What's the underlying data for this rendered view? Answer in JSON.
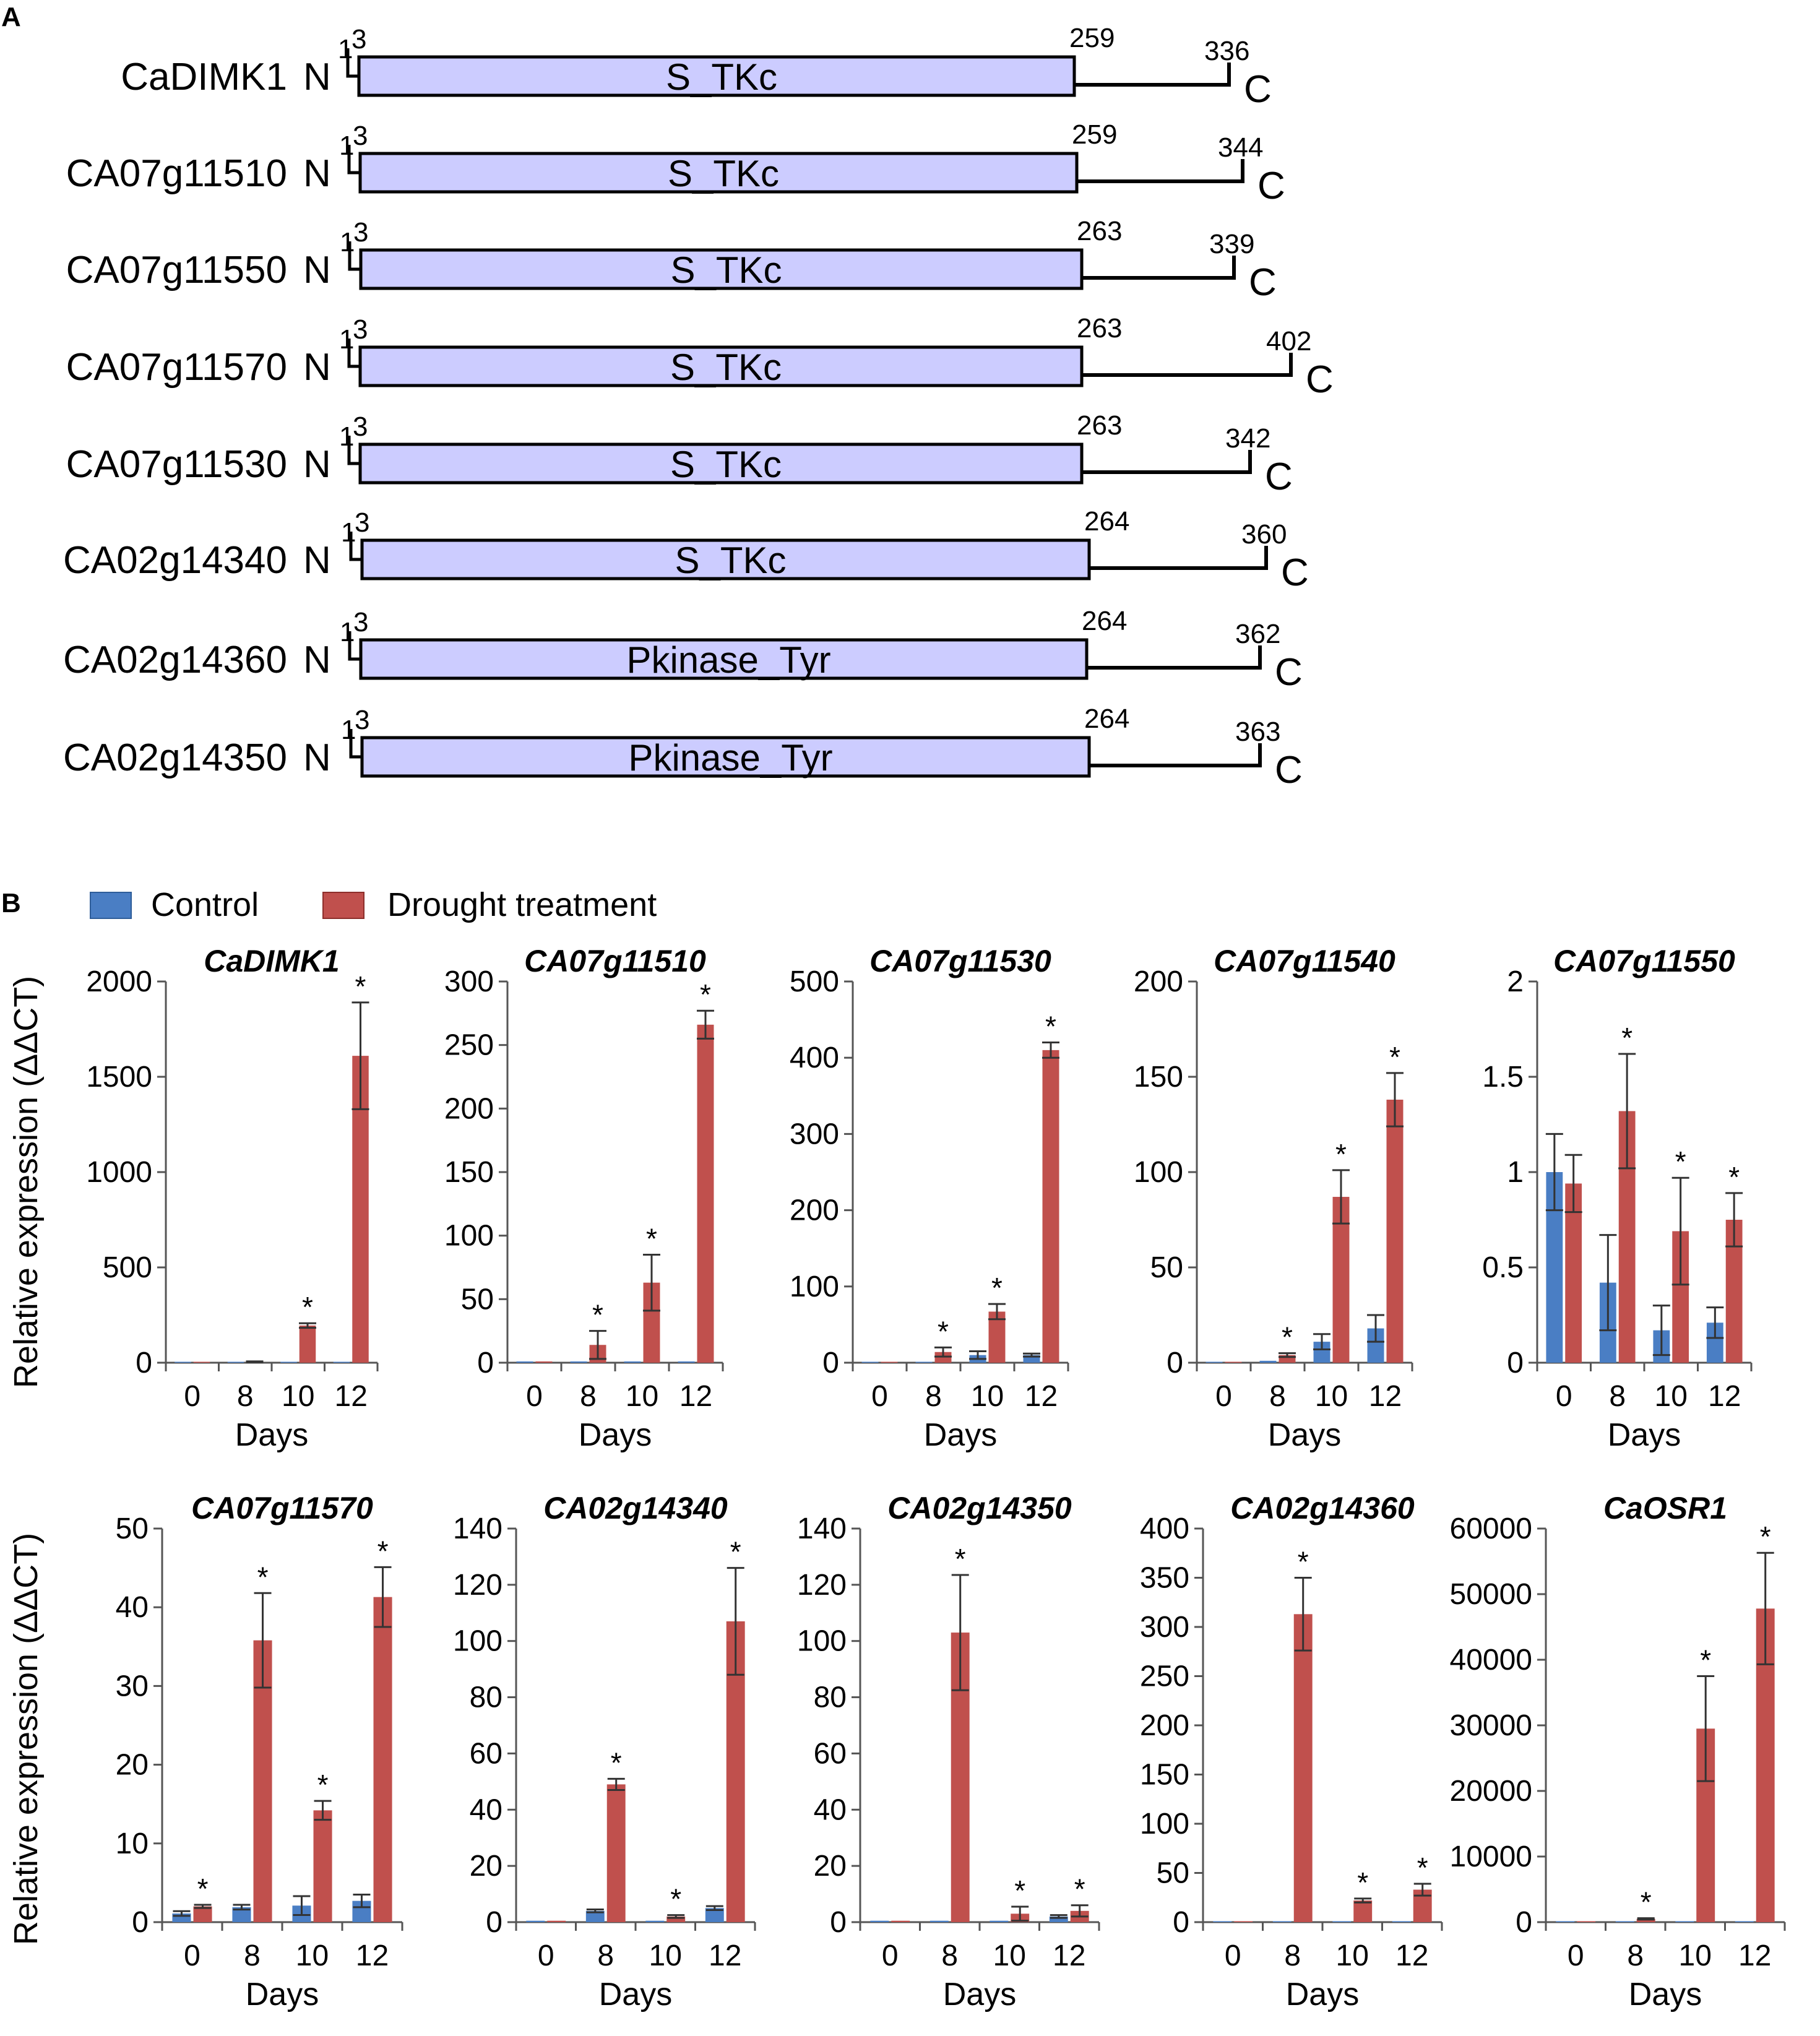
{
  "panel_a": {
    "letter": "A",
    "proteins": [
      {
        "name": "CaDIMK1",
        "n": "N",
        "c": "C",
        "start1": "1",
        "start3": "3",
        "domain_end": "259",
        "length": "336",
        "domain": "S_TKc"
      },
      {
        "name": "CA07g11510",
        "n": "N",
        "c": "C",
        "start1": "1",
        "start3": "3",
        "domain_end": "259",
        "length": "344",
        "domain": "S_TKc"
      },
      {
        "name": "CA07g11550",
        "n": "N",
        "c": "C",
        "start1": "1",
        "start3": "3",
        "domain_end": "263",
        "length": "339",
        "domain": "S_TKc"
      },
      {
        "name": "CA07g11570",
        "n": "N",
        "c": "C",
        "start1": "1",
        "start3": "3",
        "domain_end": "263",
        "length": "402",
        "domain": "S_TKc"
      },
      {
        "name": "CA07g11530",
        "n": "N",
        "c": "C",
        "start1": "1",
        "start3": "3",
        "domain_end": "263",
        "length": "342",
        "domain": "S_TKc"
      },
      {
        "name": "CA02g14340",
        "n": "N",
        "c": "C",
        "start1": "1",
        "start3": "3",
        "domain_end": "264",
        "length": "360",
        "domain": "S_TKc"
      },
      {
        "name": "CA02g14360",
        "n": "N",
        "c": "C",
        "start1": "1",
        "start3": "3",
        "domain_end": "264",
        "length": "362",
        "domain": "Pkinase_Tyr"
      },
      {
        "name": "CA02g14350",
        "n": "N",
        "c": "C",
        "start1": "1",
        "start3": "3",
        "domain_end": "264",
        "length": "363",
        "domain": "Pkinase_Tyr"
      }
    ]
  },
  "panel_b": {
    "letter": "B",
    "legend": {
      "control": "Control",
      "drought": "Drought treatment"
    },
    "ylabel": "Relative expression (ΔΔCT)",
    "xlabel": "Days"
  },
  "colors": {
    "control": "#4a7ec4",
    "drought": "#c0504d",
    "domain_fill": "#ccccff"
  },
  "chart_data": [
    {
      "type": "bar",
      "title": "CaDIMK1",
      "categories": [
        "0",
        "8",
        "10",
        "12"
      ],
      "ylim": [
        0,
        2000
      ],
      "yticks": [
        "0",
        "500",
        "1000",
        "1500",
        "2000"
      ],
      "series": [
        {
          "name": "Control",
          "values": [
            1,
            1,
            1,
            1
          ],
          "errors": [
            0,
            0,
            0,
            0
          ]
        },
        {
          "name": "Drought treatment",
          "values": [
            1,
            5,
            195,
            1610
          ],
          "errors": [
            0,
            2,
            12,
            280
          ]
        }
      ],
      "significant": [
        false,
        false,
        true,
        true
      ],
      "xlabel": "Days"
    },
    {
      "type": "bar",
      "title": "CA07g11510",
      "categories": [
        "0",
        "8",
        "10",
        "12"
      ],
      "ylim": [
        0,
        300
      ],
      "yticks": [
        "0",
        "50",
        "100",
        "150",
        "200",
        "250",
        "300"
      ],
      "series": [
        {
          "name": "Control",
          "values": [
            1,
            1,
            1,
            1
          ],
          "errors": [
            0,
            0,
            0,
            0
          ]
        },
        {
          "name": "Drought treatment",
          "values": [
            1,
            14,
            63,
            266
          ],
          "errors": [
            0,
            11,
            22,
            11
          ]
        }
      ],
      "significant": [
        false,
        true,
        true,
        true
      ],
      "xlabel": "Days"
    },
    {
      "type": "bar",
      "title": "CA07g11530",
      "categories": [
        "0",
        "8",
        "10",
        "12"
      ],
      "ylim": [
        0,
        500
      ],
      "yticks": [
        "0",
        "100",
        "200",
        "300",
        "400",
        "500"
      ],
      "series": [
        {
          "name": "Control",
          "values": [
            1,
            1,
            10,
            10
          ],
          "errors": [
            0,
            0,
            5,
            2
          ]
        },
        {
          "name": "Drought treatment",
          "values": [
            1,
            14,
            67,
            410
          ],
          "errors": [
            0,
            6,
            10,
            10
          ]
        }
      ],
      "significant": [
        false,
        true,
        true,
        true
      ],
      "xlabel": "Days"
    },
    {
      "type": "bar",
      "title": "CA07g11540",
      "categories": [
        "0",
        "8",
        "10",
        "12"
      ],
      "ylim": [
        0,
        200
      ],
      "yticks": [
        "0",
        "50",
        "100",
        "150",
        "200"
      ],
      "series": [
        {
          "name": "Control",
          "values": [
            0,
            1,
            11,
            18
          ],
          "errors": [
            0,
            0,
            4,
            7
          ]
        },
        {
          "name": "Drought treatment",
          "values": [
            0,
            4,
            87,
            138
          ],
          "errors": [
            0,
            1,
            14,
            14
          ]
        }
      ],
      "significant": [
        false,
        true,
        true,
        true
      ],
      "xlabel": "Days"
    },
    {
      "type": "bar",
      "title": "CA07g11550",
      "categories": [
        "0",
        "8",
        "10",
        "12"
      ],
      "ylim": [
        0,
        2
      ],
      "yticks": [
        "0",
        "0.5",
        "1",
        "1.5",
        "2"
      ],
      "series": [
        {
          "name": "Control",
          "values": [
            1.0,
            0.42,
            0.17,
            0.21
          ],
          "errors": [
            0.2,
            0.25,
            0.13,
            0.08
          ]
        },
        {
          "name": "Drought treatment",
          "values": [
            0.94,
            1.32,
            0.69,
            0.75
          ],
          "errors": [
            0.15,
            0.3,
            0.28,
            0.14
          ]
        }
      ],
      "significant": [
        false,
        true,
        true,
        true
      ],
      "xlabel": "Days"
    },
    {
      "type": "bar",
      "title": "CA07g11570",
      "categories": [
        "0",
        "8",
        "10",
        "12"
      ],
      "ylim": [
        0,
        50
      ],
      "yticks": [
        "0",
        "10",
        "20",
        "30",
        "40",
        "50"
      ],
      "series": [
        {
          "name": "Control",
          "values": [
            1.1,
            1.9,
            2.1,
            2.7
          ],
          "errors": [
            0.3,
            0.3,
            1.2,
            0.8
          ]
        },
        {
          "name": "Drought treatment",
          "values": [
            2.0,
            35.8,
            14.2,
            41.3
          ],
          "errors": [
            0.2,
            6.0,
            1.2,
            3.8
          ]
        }
      ],
      "significant": [
        true,
        true,
        true,
        true
      ],
      "xlabel": "Days"
    },
    {
      "type": "bar",
      "title": "CA02g14340",
      "categories": [
        "0",
        "8",
        "10",
        "12"
      ],
      "ylim": [
        0,
        140
      ],
      "yticks": [
        "0",
        "20",
        "40",
        "60",
        "80",
        "100",
        "120",
        "140"
      ],
      "series": [
        {
          "name": "Control",
          "values": [
            0.5,
            4,
            0.5,
            5
          ],
          "errors": [
            0,
            0.5,
            0,
            0.7
          ]
        },
        {
          "name": "Drought treatment",
          "values": [
            0.5,
            49,
            2,
            107
          ],
          "errors": [
            0,
            2,
            0.5,
            19
          ]
        }
      ],
      "significant": [
        false,
        true,
        true,
        true
      ],
      "xlabel": "Days"
    },
    {
      "type": "bar",
      "title": "CA02g14350",
      "categories": [
        "0",
        "8",
        "10",
        "12"
      ],
      "ylim": [
        0,
        140
      ],
      "yticks": [
        "0",
        "20",
        "40",
        "60",
        "80",
        "100",
        "120",
        "140"
      ],
      "series": [
        {
          "name": "Control",
          "values": [
            0.5,
            0.5,
            0.5,
            2
          ],
          "errors": [
            0,
            0,
            0,
            0.5
          ]
        },
        {
          "name": "Drought treatment",
          "values": [
            0.5,
            103,
            3,
            4
          ],
          "errors": [
            0,
            20.5,
            2.5,
            2
          ]
        }
      ],
      "significant": [
        false,
        true,
        true,
        true
      ],
      "xlabel": "Days"
    },
    {
      "type": "bar",
      "title": "CA02g14360",
      "categories": [
        "0",
        "8",
        "10",
        "12"
      ],
      "ylim": [
        0,
        400
      ],
      "yticks": [
        "0",
        "50",
        "100",
        "150",
        "200",
        "250",
        "300",
        "350",
        "400"
      ],
      "series": [
        {
          "name": "Control",
          "values": [
            0.5,
            0.5,
            0.5,
            0.5
          ],
          "errors": [
            0,
            0,
            0,
            0
          ]
        },
        {
          "name": "Drought treatment",
          "values": [
            0.5,
            313,
            22,
            33
          ],
          "errors": [
            0,
            37,
            2,
            6
          ]
        }
      ],
      "significant": [
        false,
        true,
        true,
        true
      ],
      "xlabel": "Days"
    },
    {
      "type": "bar",
      "title": "CaOSR1",
      "categories": [
        "0",
        "8",
        "10",
        "12"
      ],
      "ylim": [
        0,
        60000
      ],
      "yticks": [
        "0",
        "10000",
        "20000",
        "30000",
        "40000",
        "50000",
        "60000"
      ],
      "series": [
        {
          "name": "Control",
          "values": [
            100,
            100,
            100,
            100
          ],
          "errors": [
            0,
            0,
            0,
            0
          ]
        },
        {
          "name": "Drought treatment",
          "values": [
            100,
            500,
            29500,
            47800
          ],
          "errors": [
            0,
            100,
            8000,
            8500
          ]
        }
      ],
      "significant": [
        false,
        true,
        true,
        true
      ],
      "xlabel": "Days"
    }
  ]
}
